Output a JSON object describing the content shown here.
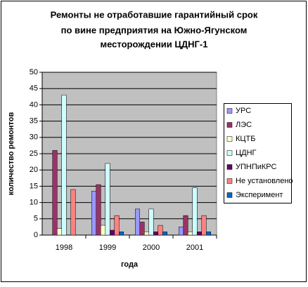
{
  "chart_data": {
    "type": "bar",
    "title": [
      "Ремонты не отработавшие гарантийный срок",
      "по вине предприятия на Южно-Ягунском",
      "месторождении ЦДНГ-1"
    ],
    "x_label": "года",
    "y_label": "количество ремонтов",
    "categories": [
      "1998",
      "1999",
      "2000",
      "2001"
    ],
    "series": [
      {
        "name": "УРС",
        "color": "#9999ff",
        "values": [
          0,
          13.5,
          8,
          2.5
        ]
      },
      {
        "name": "ЛЭС",
        "color": "#993366",
        "values": [
          26,
          15.5,
          4,
          6
        ]
      },
      {
        "name": "КЦТБ",
        "color": "#ffffcc",
        "values": [
          2,
          3,
          1,
          1
        ]
      },
      {
        "name": "ЦДНГ",
        "color": "#ccffff",
        "values": [
          43,
          22,
          8,
          14.5
        ]
      },
      {
        "name": "УПНПиКРС",
        "color": "#660066",
        "values": [
          0,
          1.5,
          1,
          1
        ]
      },
      {
        "name": "Не установлено",
        "color": "#ff8080",
        "values": [
          14,
          6,
          3,
          6
        ]
      },
      {
        "name": "Эксперимент",
        "color": "#0066cc",
        "values": [
          0,
          1,
          1,
          1
        ]
      }
    ],
    "ylim": [
      0,
      50
    ],
    "yticks": [
      0,
      5,
      10,
      15,
      20,
      25,
      30,
      35,
      40,
      45,
      50
    ],
    "grid": true,
    "plot_background": "#c0c0c0",
    "legend": "right"
  }
}
